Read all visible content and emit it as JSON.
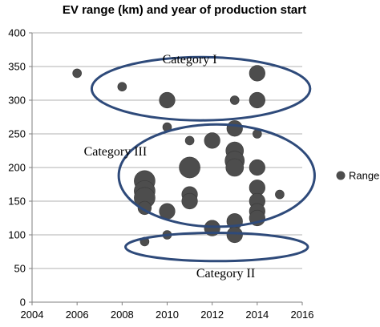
{
  "chart_data": {
    "type": "scatter",
    "variant": "bubble",
    "title": "EV range (km) and year of production start",
    "xlabel": "",
    "ylabel": "",
    "xlim": [
      2004,
      2016
    ],
    "ylim": [
      0,
      400
    ],
    "x_ticks": [
      2004,
      2006,
      2008,
      2010,
      2012,
      2014,
      2016
    ],
    "y_ticks": [
      0,
      50,
      100,
      150,
      200,
      250,
      300,
      350,
      400
    ],
    "grid": "horizontal",
    "legend_position": "right",
    "series": [
      {
        "name": "Range",
        "color": "#4d4d4d",
        "points": [
          {
            "x": 2006,
            "y": 340,
            "size": 1
          },
          {
            "x": 2008,
            "y": 320,
            "size": 1
          },
          {
            "x": 2010,
            "y": 300,
            "size": 3
          },
          {
            "x": 2013,
            "y": 300,
            "size": 1
          },
          {
            "x": 2014,
            "y": 340,
            "size": 3
          },
          {
            "x": 2014,
            "y": 300,
            "size": 3
          },
          {
            "x": 2010,
            "y": 260,
            "size": 1
          },
          {
            "x": 2013,
            "y": 258,
            "size": 3
          },
          {
            "x": 2014,
            "y": 250,
            "size": 1
          },
          {
            "x": 2011,
            "y": 240,
            "size": 1
          },
          {
            "x": 2012,
            "y": 240,
            "size": 3
          },
          {
            "x": 2013,
            "y": 225,
            "size": 4
          },
          {
            "x": 2013,
            "y": 210,
            "size": 5
          },
          {
            "x": 2013,
            "y": 200,
            "size": 4
          },
          {
            "x": 2014,
            "y": 200,
            "size": 3
          },
          {
            "x": 2011,
            "y": 200,
            "size": 6
          },
          {
            "x": 2009,
            "y": 180,
            "size": 6
          },
          {
            "x": 2009,
            "y": 165,
            "size": 6
          },
          {
            "x": 2009,
            "y": 155,
            "size": 6
          },
          {
            "x": 2009,
            "y": 140,
            "size": 2
          },
          {
            "x": 2011,
            "y": 160,
            "size": 3
          },
          {
            "x": 2011,
            "y": 150,
            "size": 3
          },
          {
            "x": 2014,
            "y": 170,
            "size": 3
          },
          {
            "x": 2014,
            "y": 150,
            "size": 3
          },
          {
            "x": 2014,
            "y": 135,
            "size": 3
          },
          {
            "x": 2014,
            "y": 125,
            "size": 3
          },
          {
            "x": 2015,
            "y": 160,
            "size": 1
          },
          {
            "x": 2010,
            "y": 135,
            "size": 3
          },
          {
            "x": 2013,
            "y": 120,
            "size": 3
          },
          {
            "x": 2012,
            "y": 110,
            "size": 3
          },
          {
            "x": 2013,
            "y": 100,
            "size": 3
          },
          {
            "x": 2009,
            "y": 90,
            "size": 1
          },
          {
            "x": 2010,
            "y": 100,
            "size": 1
          }
        ]
      }
    ],
    "annotations": [
      {
        "label": "Category I",
        "type": "ellipse",
        "color": "#2e4a7a",
        "center": [
          2011.5,
          317
        ],
        "radii": [
          4.85,
          47
        ]
      },
      {
        "label": "Category III",
        "type": "ellipse",
        "color": "#2e4a7a",
        "center": [
          2012.2,
          188
        ],
        "radii": [
          4.35,
          76
        ]
      },
      {
        "label": "Category II",
        "type": "ellipse",
        "color": "#2e4a7a",
        "center": [
          2012.2,
          82
        ],
        "radii": [
          4.05,
          21
        ]
      }
    ]
  }
}
